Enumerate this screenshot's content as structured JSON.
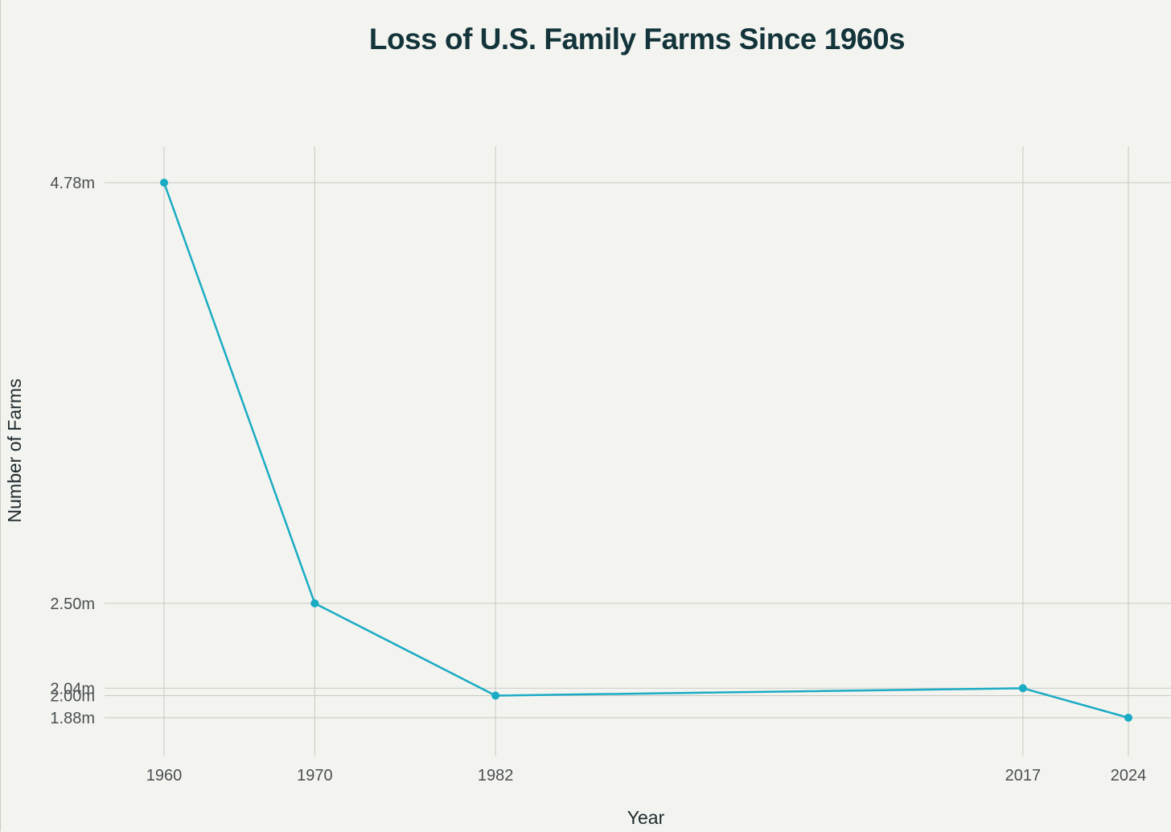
{
  "chart_data": {
    "type": "line",
    "title": "Loss of U.S. Family Farms Since 1960s",
    "xlabel": "Year",
    "ylabel": "Number of Farms",
    "x": [
      1960,
      1970,
      1982,
      2017,
      2024
    ],
    "x_tick_labels": [
      "1960",
      "1970",
      "1982",
      "2017",
      "2024"
    ],
    "y_ticks": [
      4.78,
      2.5,
      2.04,
      2.0,
      1.88
    ],
    "y_tick_labels": [
      "4.78m",
      "2.50m",
      "2.04m",
      "2.00m",
      "1.88m"
    ],
    "series": [
      {
        "values": [
          4.78,
          2.5,
          2.0,
          2.04,
          1.88
        ]
      }
    ],
    "y_unit": "millions",
    "grid": true,
    "legend": "none",
    "colors": {
      "line": "#1aabc4",
      "grid": "#c8c9c3",
      "background": "#f3f4ef",
      "title": "#13343b"
    }
  }
}
